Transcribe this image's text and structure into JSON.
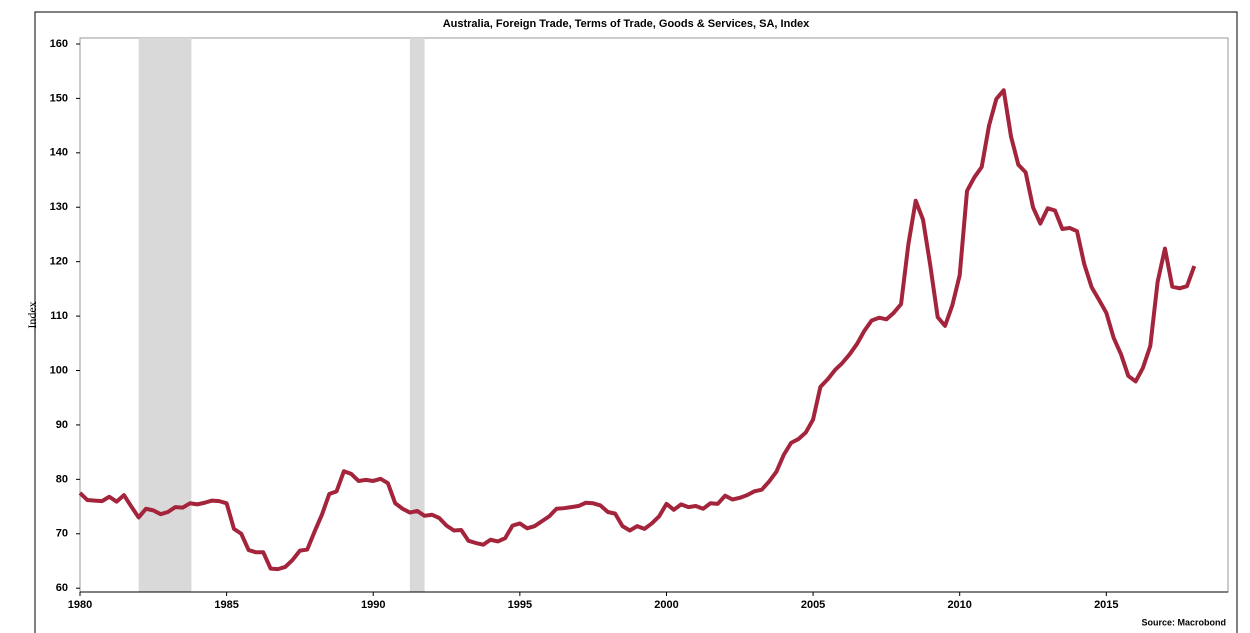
{
  "chart_data": {
    "type": "line",
    "title": "Australia, Foreign Trade, Terms of Trade, Goods & Services, SA, Index",
    "y_label": "Index",
    "source": "Source: Macrobond",
    "x": [
      1980.0,
      1980.25,
      1980.5,
      1980.75,
      1981.0,
      1981.25,
      1981.5,
      1981.75,
      1982.0,
      1982.25,
      1982.5,
      1982.75,
      1983.0,
      1983.25,
      1983.5,
      1983.75,
      1984.0,
      1984.25,
      1984.5,
      1984.75,
      1985.0,
      1985.25,
      1985.5,
      1985.75,
      1986.0,
      1986.25,
      1986.5,
      1986.75,
      1987.0,
      1987.25,
      1987.5,
      1987.75,
      1988.0,
      1988.25,
      1988.5,
      1988.75,
      1989.0,
      1989.25,
      1989.5,
      1989.75,
      1990.0,
      1990.25,
      1990.5,
      1990.75,
      1991.0,
      1991.25,
      1991.5,
      1991.75,
      1992.0,
      1992.25,
      1992.5,
      1992.75,
      1993.0,
      1993.25,
      1993.5,
      1993.75,
      1994.0,
      1994.25,
      1994.5,
      1994.75,
      1995.0,
      1995.25,
      1995.5,
      1995.75,
      1996.0,
      1996.25,
      1996.5,
      1996.75,
      1997.0,
      1997.25,
      1997.5,
      1997.75,
      1998.0,
      1998.25,
      1998.5,
      1998.75,
      1999.0,
      1999.25,
      1999.5,
      1999.75,
      2000.0,
      2000.25,
      2000.5,
      2000.75,
      2001.0,
      2001.25,
      2001.5,
      2001.75,
      2002.0,
      2002.25,
      2002.5,
      2002.75,
      2003.0,
      2003.25,
      2003.5,
      2003.75,
      2004.0,
      2004.25,
      2004.5,
      2004.75,
      2005.0,
      2005.25,
      2005.5,
      2005.75,
      2006.0,
      2006.25,
      2006.5,
      2006.75,
      2007.0,
      2007.25,
      2007.5,
      2007.75,
      2008.0,
      2008.25,
      2008.5,
      2008.75,
      2009.0,
      2009.25,
      2009.5,
      2009.75,
      2010.0,
      2010.25,
      2010.5,
      2010.75,
      2011.0,
      2011.25,
      2011.5,
      2011.75,
      2012.0,
      2012.25,
      2012.5,
      2012.75,
      2013.0,
      2013.25,
      2013.5,
      2013.75,
      2014.0,
      2014.25,
      2014.5,
      2014.75,
      2015.0,
      2015.25,
      2015.5,
      2015.75,
      2016.0,
      2016.25,
      2016.5,
      2016.75,
      2017.0,
      2017.25,
      2017.5,
      2017.75,
      2018.0
    ],
    "series": [
      {
        "name": "Terms of Trade",
        "color": "#a3243b",
        "values": [
          77.5,
          76.2,
          76.1,
          76.0,
          76.8,
          75.9,
          77.1,
          75.0,
          73.0,
          74.6,
          74.3,
          73.6,
          74.0,
          74.9,
          74.8,
          75.6,
          75.4,
          75.7,
          76.1,
          76.0,
          75.6,
          70.9,
          70.0,
          67.0,
          66.6,
          66.6,
          63.6,
          63.5,
          63.9,
          65.2,
          66.9,
          67.1,
          70.4,
          73.5,
          77.3,
          77.8,
          81.5,
          81.0,
          79.7,
          79.9,
          79.7,
          80.1,
          79.3,
          75.6,
          74.6,
          73.9,
          74.2,
          73.3,
          73.5,
          72.9,
          71.5,
          70.6,
          70.7,
          68.7,
          68.3,
          68.0,
          68.9,
          68.6,
          69.2,
          71.5,
          71.9,
          71.0,
          71.4,
          72.3,
          73.2,
          74.6,
          74.7,
          74.9,
          75.1,
          75.7,
          75.6,
          75.2,
          74.0,
          73.7,
          71.4,
          70.6,
          71.4,
          70.9,
          71.9,
          73.2,
          75.5,
          74.4,
          75.4,
          74.9,
          75.1,
          74.6,
          75.6,
          75.5,
          77.0,
          76.3,
          76.6,
          77.1,
          77.8,
          78.1,
          79.6,
          81.4,
          84.5,
          86.7,
          87.4,
          88.6,
          91.0,
          97.0,
          98.4,
          100.1,
          101.4,
          103.0,
          104.9,
          107.3,
          109.2,
          109.7,
          109.4,
          110.6,
          112.2,
          123.2,
          131.2,
          127.7,
          119.2,
          109.8,
          108.2,
          112.0,
          117.5,
          133.0,
          135.5,
          137.4,
          145.0,
          149.9,
          151.5,
          143.0,
          137.8,
          136.4,
          130.0,
          127.0,
          129.8,
          129.4,
          126.0,
          126.2,
          125.6,
          119.5,
          115.3,
          113.0,
          110.6,
          106.0,
          103.0,
          99.0,
          98.0,
          100.5,
          104.5,
          116.3,
          122.4,
          115.4,
          115.1,
          115.5,
          119.2
        ]
      }
    ],
    "shaded_periods": [
      [
        1982.0,
        1983.8
      ],
      [
        1991.25,
        1991.75
      ]
    ],
    "shade_color": "#d9d9d9",
    "xlim": [
      1980,
      2019.15
    ],
    "xticks": [
      1980,
      1985,
      1990,
      1995,
      2000,
      2005,
      2010,
      2015
    ],
    "ylim": [
      59.3,
      161.1
    ],
    "yticks": [
      60,
      70,
      80,
      90,
      100,
      110,
      120,
      130,
      140,
      150,
      160
    ]
  }
}
